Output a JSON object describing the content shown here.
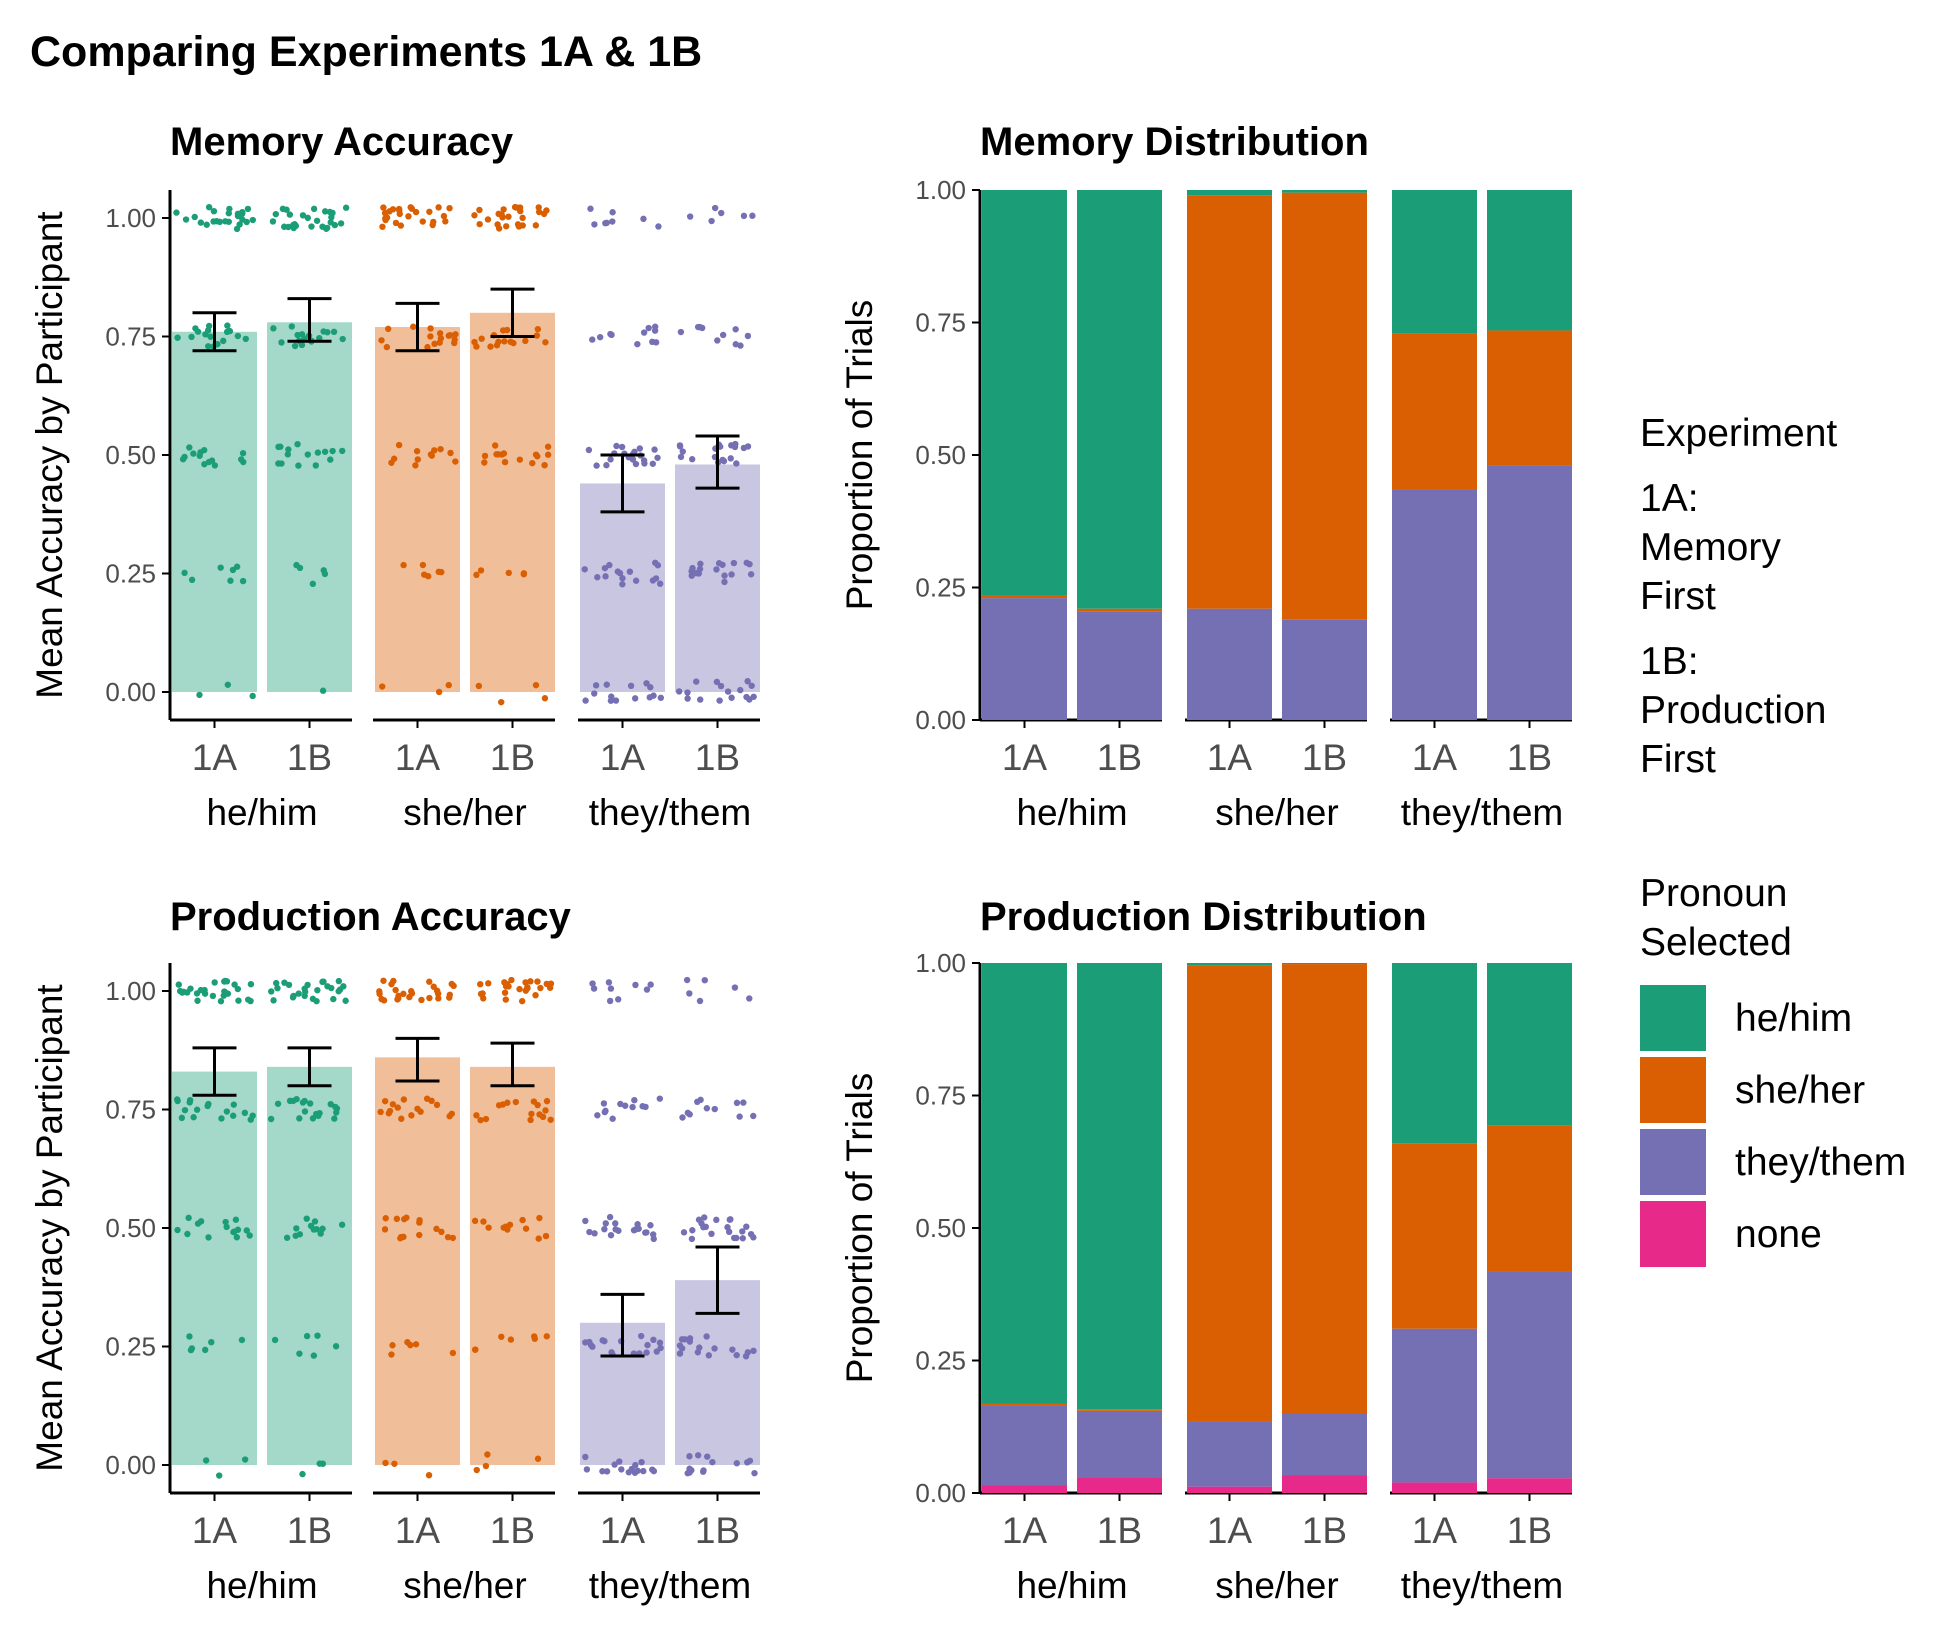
{
  "figure": {
    "title": "Comparing Experiments 1A & 1B"
  },
  "colors": {
    "he/him": "#1b9e77",
    "she/her": "#d95f02",
    "they/them": "#7570b3",
    "none": "#e7298a"
  },
  "legend": {
    "experiment_title": "Experiment",
    "experiment_items": [
      [
        "1A:",
        "Memory",
        "First"
      ],
      [
        "1B:",
        "Production",
        "First"
      ]
    ],
    "pronoun_title": [
      "Pronoun",
      "Selected"
    ],
    "pronoun_items": [
      "he/him",
      "she/her",
      "they/them",
      "none"
    ]
  },
  "chart_data": [
    {
      "type": "bar",
      "title": "Memory Accuracy",
      "xlabel": "",
      "ylabel": "Mean Accuracy by Participant",
      "ylim": [
        0,
        1
      ],
      "yticks": [
        "0.00",
        "0.25",
        "0.50",
        "0.75",
        "1.00"
      ],
      "groups": [
        "he/him",
        "she/her",
        "they/them"
      ],
      "categories": [
        "1A",
        "1B"
      ],
      "series": [
        {
          "group": "he/him",
          "category": "1A",
          "value": 0.76,
          "ci": [
            0.72,
            0.8
          ]
        },
        {
          "group": "he/him",
          "category": "1B",
          "value": 0.78,
          "ci": [
            0.74,
            0.83
          ]
        },
        {
          "group": "she/her",
          "category": "1A",
          "value": 0.77,
          "ci": [
            0.72,
            0.82
          ]
        },
        {
          "group": "she/her",
          "category": "1B",
          "value": 0.8,
          "ci": [
            0.75,
            0.85
          ]
        },
        {
          "group": "they/them",
          "category": "1A",
          "value": 0.44,
          "ci": [
            0.38,
            0.5
          ]
        },
        {
          "group": "they/them",
          "category": "1B",
          "value": 0.48,
          "ci": [
            0.43,
            0.54
          ]
        }
      ],
      "points": "jittered individual participant means at 0, 0.25, 0.5, 0.75, 1"
    },
    {
      "type": "bar",
      "stacked": true,
      "title": "Memory Distribution",
      "xlabel": "",
      "ylabel": "Proportion of Trials",
      "ylim": [
        0,
        1
      ],
      "yticks": [
        "0.00",
        "0.25",
        "0.50",
        "0.75",
        "1.00"
      ],
      "groups": [
        "he/him",
        "she/her",
        "they/them"
      ],
      "categories": [
        "1A",
        "1B"
      ],
      "stack_order": [
        "none",
        "they/them",
        "she/her",
        "he/him"
      ],
      "bars": [
        {
          "group": "he/him",
          "category": "1A",
          "none": 0.0,
          "they/them": 0.23,
          "she/her": 0.005,
          "he/him": 0.765
        },
        {
          "group": "he/him",
          "category": "1B",
          "none": 0.0,
          "they/them": 0.205,
          "she/her": 0.005,
          "he/him": 0.79
        },
        {
          "group": "she/her",
          "category": "1A",
          "none": 0.0,
          "they/them": 0.21,
          "she/her": 0.78,
          "he/him": 0.01
        },
        {
          "group": "she/her",
          "category": "1B",
          "none": 0.0,
          "they/them": 0.19,
          "she/her": 0.805,
          "he/him": 0.005
        },
        {
          "group": "they/them",
          "category": "1A",
          "none": 0.0,
          "they/them": 0.435,
          "she/her": 0.295,
          "he/him": 0.27
        },
        {
          "group": "they/them",
          "category": "1B",
          "none": 0.0,
          "they/them": 0.48,
          "she/her": 0.255,
          "he/him": 0.265
        }
      ]
    },
    {
      "type": "bar",
      "title": "Production Accuracy",
      "xlabel": "",
      "ylabel": "Mean Accuracy by Participant",
      "ylim": [
        0,
        1
      ],
      "yticks": [
        "0.00",
        "0.25",
        "0.50",
        "0.75",
        "1.00"
      ],
      "groups": [
        "he/him",
        "she/her",
        "they/them"
      ],
      "categories": [
        "1A",
        "1B"
      ],
      "series": [
        {
          "group": "he/him",
          "category": "1A",
          "value": 0.83,
          "ci": [
            0.78,
            0.88
          ]
        },
        {
          "group": "he/him",
          "category": "1B",
          "value": 0.84,
          "ci": [
            0.8,
            0.88
          ]
        },
        {
          "group": "she/her",
          "category": "1A",
          "value": 0.86,
          "ci": [
            0.81,
            0.9
          ]
        },
        {
          "group": "she/her",
          "category": "1B",
          "value": 0.84,
          "ci": [
            0.8,
            0.89
          ]
        },
        {
          "group": "they/them",
          "category": "1A",
          "value": 0.3,
          "ci": [
            0.23,
            0.36
          ]
        },
        {
          "group": "they/them",
          "category": "1B",
          "value": 0.39,
          "ci": [
            0.32,
            0.46
          ]
        }
      ],
      "points": "jittered individual participant means at 0, 0.25, 0.5, 0.75, 1"
    },
    {
      "type": "bar",
      "stacked": true,
      "title": "Production Distribution",
      "xlabel": "",
      "ylabel": "Proportion of Trials",
      "ylim": [
        0,
        1
      ],
      "yticks": [
        "0.00",
        "0.25",
        "0.50",
        "0.75",
        "1.00"
      ],
      "groups": [
        "he/him",
        "she/her",
        "they/them"
      ],
      "categories": [
        "1A",
        "1B"
      ],
      "stack_order": [
        "none",
        "they/them",
        "she/her",
        "he/him"
      ],
      "bars": [
        {
          "group": "he/him",
          "category": "1A",
          "none": 0.015,
          "they/them": 0.15,
          "she/her": 0.003,
          "he/him": 0.832
        },
        {
          "group": "he/him",
          "category": "1B",
          "none": 0.03,
          "they/them": 0.125,
          "she/her": 0.003,
          "he/him": 0.842
        },
        {
          "group": "she/her",
          "category": "1A",
          "none": 0.012,
          "they/them": 0.123,
          "she/her": 0.86,
          "he/him": 0.005
        },
        {
          "group": "she/her",
          "category": "1B",
          "none": 0.033,
          "they/them": 0.117,
          "she/her": 0.848,
          "he/him": 0.002
        },
        {
          "group": "they/them",
          "category": "1A",
          "none": 0.02,
          "they/them": 0.29,
          "she/her": 0.35,
          "he/him": 0.34
        },
        {
          "group": "they/them",
          "category": "1B",
          "none": 0.028,
          "they/them": 0.39,
          "she/her": 0.275,
          "he/him": 0.307
        }
      ]
    }
  ]
}
